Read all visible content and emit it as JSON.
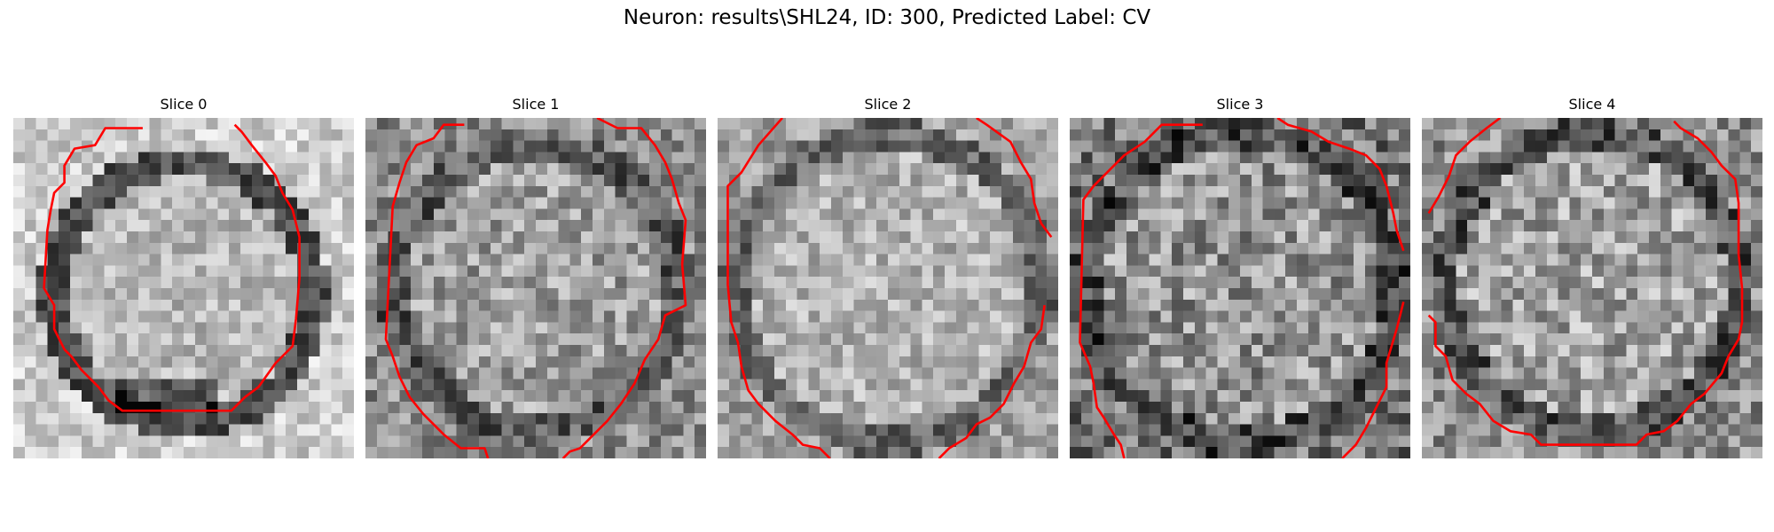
{
  "figure": {
    "title": "Neuron: results\\SHL24, ID: 300, Predicted Label: CV"
  },
  "slices": [
    {
      "title": "Slice 0"
    },
    {
      "title": "Slice 1"
    },
    {
      "title": "Slice 2"
    },
    {
      "title": "Slice 3"
    },
    {
      "title": "Slice 4"
    }
  ],
  "colors": {
    "contour": "#ff0000",
    "background": "#ffffff",
    "colormap": "gray"
  }
}
